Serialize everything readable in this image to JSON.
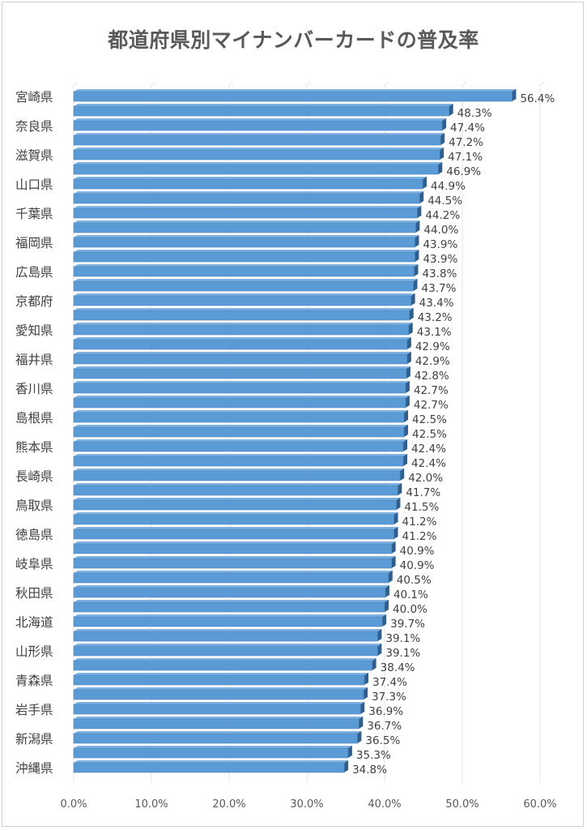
{
  "chart_data": {
    "type": "bar",
    "orientation": "horizontal",
    "title": "都道府県別マイナンバーカードの普及率",
    "xlabel": "",
    "ylabel": "",
    "xlim": [
      0,
      60
    ],
    "x_ticks": [
      "0.0%",
      "10.0%",
      "20.0%",
      "30.0%",
      "40.0%",
      "50.0%",
      "60.0%"
    ],
    "grid": true,
    "bar_color": "#5b9bd5",
    "bar_shade_color": "#2e5f8f",
    "categories": [
      "宮崎県",
      "",
      "奈良県",
      "",
      "滋賀県",
      "",
      "山口県",
      "",
      "千葉県",
      "",
      "福岡県",
      "",
      "広島県",
      "",
      "京都府",
      "",
      "愛知県",
      "",
      "福井県",
      "",
      "香川県",
      "",
      "島根県",
      "",
      "熊本県",
      "",
      "長崎県",
      "",
      "鳥取県",
      "",
      "徳島県",
      "",
      "岐阜県",
      "",
      "秋田県",
      "",
      "北海道",
      "",
      "山形県",
      "",
      "青森県",
      "",
      "岩手県",
      "",
      "新潟県",
      "",
      "沖縄県"
    ],
    "values": [
      56.4,
      48.3,
      47.4,
      47.2,
      47.1,
      46.9,
      44.9,
      44.5,
      44.2,
      44.0,
      43.9,
      43.9,
      43.8,
      43.7,
      43.4,
      43.2,
      43.1,
      42.9,
      42.9,
      42.8,
      42.7,
      42.7,
      42.5,
      42.5,
      42.4,
      42.4,
      42.0,
      41.7,
      41.5,
      41.2,
      41.2,
      40.9,
      40.9,
      40.5,
      40.1,
      40.0,
      39.7,
      39.1,
      39.1,
      38.4,
      37.4,
      37.3,
      36.9,
      36.7,
      36.5,
      35.3,
      34.8
    ],
    "data_labels": [
      "56.4%",
      "48.3%",
      "47.4%",
      "47.2%",
      "47.1%",
      "46.9%",
      "44.9%",
      "44.5%",
      "44.2%",
      "44.0%",
      "43.9%",
      "43.9%",
      "43.8%",
      "43.7%",
      "43.4%",
      "43.2%",
      "43.1%",
      "42.9%",
      "42.9%",
      "42.8%",
      "42.7%",
      "42.7%",
      "42.5%",
      "42.5%",
      "42.4%",
      "42.4%",
      "42.0%",
      "41.7%",
      "41.5%",
      "41.2%",
      "41.2%",
      "40.9%",
      "40.9%",
      "40.5%",
      "40.1%",
      "40.0%",
      "39.7%",
      "39.1%",
      "39.1%",
      "38.4%",
      "37.4%",
      "37.3%",
      "36.9%",
      "36.7%",
      "36.5%",
      "35.3%",
      "34.8%"
    ]
  }
}
